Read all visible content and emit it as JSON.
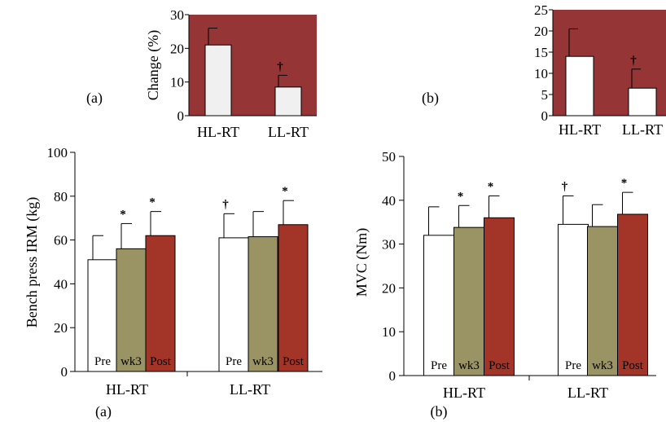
{
  "chart_data": [
    {
      "type": "bar",
      "panel_label": "(a)",
      "categories": [
        "HL-RT",
        "LL-RT"
      ],
      "values": [
        21,
        8.5
      ],
      "errors": [
        5,
        3.5
      ],
      "annotations": [
        "",
        "†"
      ],
      "ylabel": "Change (%)",
      "ylim": [
        0,
        30
      ],
      "yticks": [
        "0",
        "10",
        "20",
        "30"
      ],
      "background_color": "#953535",
      "bar_color": "#f0f0f0"
    },
    {
      "type": "bar",
      "panel_label": "(b)",
      "categories": [
        "HL-RT",
        "LL-RT"
      ],
      "values": [
        14,
        6.5
      ],
      "errors": [
        6.5,
        4.5
      ],
      "annotations": [
        "",
        "†"
      ],
      "ylabel": "",
      "ylim": [
        0,
        25
      ],
      "yticks": [
        "0",
        "5",
        "10",
        "15",
        "20",
        "25"
      ],
      "background_color": "#953535",
      "bar_color": "#ffffff"
    },
    {
      "type": "bar",
      "panel_label": "(a)",
      "categories": [
        "HL-RT",
        "LL-RT"
      ],
      "series": [
        {
          "name": "Pre",
          "values": [
            51,
            61
          ],
          "errors": [
            11,
            11
          ],
          "annotations": [
            "",
            "†"
          ],
          "color": "#ffffff",
          "label_color": "#000000"
        },
        {
          "name": "wk3",
          "values": [
            56,
            61.5
          ],
          "errors": [
            11.5,
            11.5
          ],
          "annotations": [
            "*",
            ""
          ],
          "color": "#9a9363",
          "label_color": "#000000"
        },
        {
          "name": "Post",
          "values": [
            62,
            67
          ],
          "errors": [
            11,
            11
          ],
          "annotations": [
            "*",
            "*"
          ],
          "color": "#a33528",
          "label_color": "#ffffff"
        }
      ],
      "ylabel": "Bench press IRM (kg)",
      "ylim": [
        0,
        100
      ],
      "yticks": [
        "0",
        "20",
        "40",
        "60",
        "80",
        "100"
      ]
    },
    {
      "type": "bar",
      "panel_label": "(b)",
      "categories": [
        "HL-RT",
        "LL-RT"
      ],
      "series": [
        {
          "name": "Pre",
          "values": [
            32,
            34.5
          ],
          "errors": [
            6.5,
            6.5
          ],
          "annotations": [
            "",
            "†"
          ],
          "color": "#ffffff",
          "label_color": "#000000"
        },
        {
          "name": "wk3",
          "values": [
            33.8,
            34
          ],
          "errors": [
            5,
            5
          ],
          "annotations": [
            "*",
            ""
          ],
          "color": "#9a9363",
          "label_color": "#000000"
        },
        {
          "name": "Post",
          "values": [
            36,
            36.8
          ],
          "errors": [
            5,
            5
          ],
          "annotations": [
            "*",
            "*"
          ],
          "color": "#a33528",
          "label_color": "#ffffff"
        }
      ],
      "ylabel": "MVC (Nm)",
      "ylim": [
        0,
        50
      ],
      "yticks": [
        "0",
        "10",
        "20",
        "30",
        "40",
        "50"
      ]
    }
  ]
}
